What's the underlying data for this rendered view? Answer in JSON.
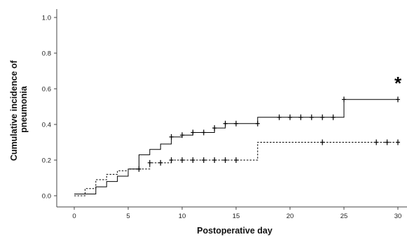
{
  "chart_data": {
    "type": "line",
    "subtype": "kaplan-meier cumulative incidence (step)",
    "title": "",
    "xlabel": "Postoperative day",
    "ylabel_lines": [
      "Cumulative incidence of",
      "pneumonia"
    ],
    "xlim": [
      0,
      30
    ],
    "ylim": [
      0,
      1.0
    ],
    "xticks": [
      0,
      5,
      10,
      15,
      20,
      25,
      30
    ],
    "yticks": [
      "0.0",
      "0.2",
      "0.4",
      "0.6",
      "0.8",
      "1.0"
    ],
    "grid": false,
    "legend": null,
    "annotation": "*",
    "series": [
      {
        "style": "solid",
        "color": "#000000",
        "steps": [
          [
            0,
            0.01
          ],
          [
            2,
            0.05
          ],
          [
            3,
            0.08
          ],
          [
            4,
            0.11
          ],
          [
            5,
            0.15
          ],
          [
            6,
            0.23
          ],
          [
            7,
            0.26
          ],
          [
            8,
            0.29
          ],
          [
            9,
            0.33
          ],
          [
            10,
            0.34
          ],
          [
            11,
            0.355
          ],
          [
            13,
            0.38
          ],
          [
            14,
            0.405
          ],
          [
            17,
            0.44
          ],
          [
            25,
            0.54
          ],
          [
            30,
            0.54
          ]
        ],
        "censored": [
          [
            6,
            0.15
          ],
          [
            9,
            0.33
          ],
          [
            10,
            0.34
          ],
          [
            11,
            0.355
          ],
          [
            12,
            0.355
          ],
          [
            13,
            0.38
          ],
          [
            14,
            0.405
          ],
          [
            15,
            0.405
          ],
          [
            17,
            0.405
          ],
          [
            19,
            0.44
          ],
          [
            20,
            0.44
          ],
          [
            21,
            0.44
          ],
          [
            22,
            0.44
          ],
          [
            23,
            0.44
          ],
          [
            24,
            0.44
          ],
          [
            25,
            0.54
          ],
          [
            30,
            0.54
          ]
        ]
      },
      {
        "style": "dashed",
        "color": "#000000",
        "steps": [
          [
            0,
            0.0
          ],
          [
            1,
            0.04
          ],
          [
            2,
            0.09
          ],
          [
            3,
            0.12
          ],
          [
            4,
            0.14
          ],
          [
            5,
            0.15
          ],
          [
            7,
            0.185
          ],
          [
            9,
            0.2
          ],
          [
            17,
            0.3
          ],
          [
            30,
            0.3
          ]
        ],
        "censored": [
          [
            7,
            0.185
          ],
          [
            8,
            0.185
          ],
          [
            9,
            0.2
          ],
          [
            10,
            0.2
          ],
          [
            11,
            0.2
          ],
          [
            12,
            0.2
          ],
          [
            13,
            0.2
          ],
          [
            14,
            0.2
          ],
          [
            15,
            0.2
          ],
          [
            23,
            0.3
          ],
          [
            28,
            0.3
          ],
          [
            29,
            0.3
          ],
          [
            30,
            0.3
          ]
        ]
      }
    ]
  }
}
